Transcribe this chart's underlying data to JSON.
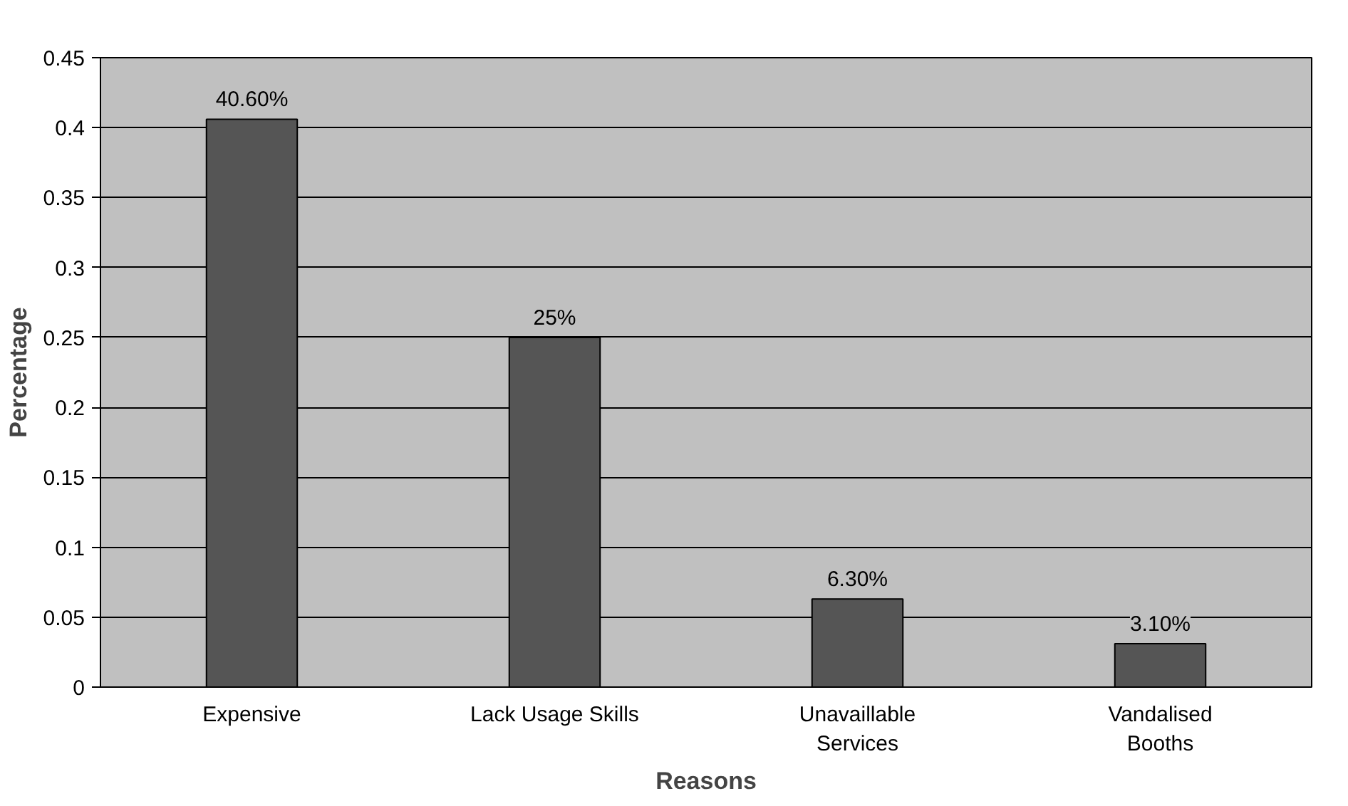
{
  "chart_data": {
    "type": "bar",
    "xlabel": "Reasons",
    "ylabel": "Percentage",
    "categories": [
      "Expensive",
      "Lack Usage Skills",
      "Unavaillable\nServices",
      "Vandalised\nBooths"
    ],
    "values": [
      0.406,
      0.25,
      0.063,
      0.031
    ],
    "value_labels": [
      "40.60%",
      "25%",
      "6.30%",
      "3.10%"
    ],
    "color": "#555555",
    "ylim": [
      0,
      0.45
    ],
    "yticks": [
      0,
      0.05,
      0.1,
      0.15,
      0.2,
      0.25,
      0.3,
      0.35,
      0.4,
      0.45
    ],
    "grid": "y"
  }
}
